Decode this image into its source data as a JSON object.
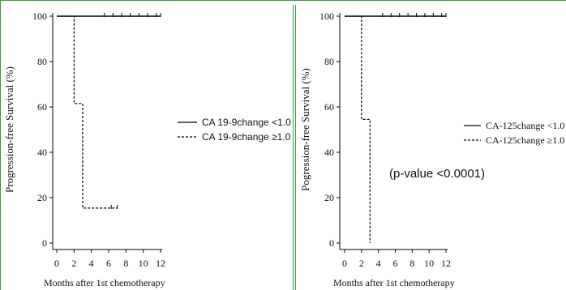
{
  "chart_data": [
    {
      "type": "line",
      "chart_style": "kaplan-meier step",
      "ylabel": "Progression-free Survival (%)",
      "xlabel": "Months after 1st chemotherapy",
      "xticks": [
        "0",
        "2",
        "4",
        "6",
        "8",
        "10",
        "12"
      ],
      "yticks": [
        "0",
        "20",
        "40",
        "60",
        "80",
        "100"
      ],
      "xlim": [
        0,
        12
      ],
      "ylim": [
        0,
        100
      ],
      "legend_position": "right",
      "series": [
        {
          "name": "CA 19-9change <1.0",
          "line_style": "solid",
          "steps": [
            [
              0,
              100
            ],
            [
              12,
              100
            ]
          ],
          "censor_marks": [
            [
              5.5,
              100
            ],
            [
              6.5,
              100
            ],
            [
              7.5,
              100
            ],
            [
              8.5,
              100
            ],
            [
              9.5,
              100
            ],
            [
              10.5,
              100
            ],
            [
              11.5,
              100
            ],
            [
              12,
              100
            ]
          ]
        },
        {
          "name": "CA 19-9change ≥1.0",
          "line_style": "dashed",
          "steps": [
            [
              0,
              100
            ],
            [
              2,
              100
            ],
            [
              2,
              61.5
            ],
            [
              3,
              61.5
            ],
            [
              3,
              15.4
            ],
            [
              7,
              15.4
            ]
          ],
          "censor_marks": [
            [
              6.3,
              15.4
            ],
            [
              7,
              15.4
            ]
          ]
        }
      ],
      "annotations": []
    },
    {
      "type": "line",
      "chart_style": "kaplan-meier step",
      "ylabel": "Pogression-free Survival (%)",
      "xlabel": "Months after 1st chemotherapy",
      "xticks": [
        "0",
        "2",
        "4",
        "6",
        "8",
        "10",
        "12"
      ],
      "yticks": [
        "0",
        "20",
        "40",
        "60",
        "80",
        "100"
      ],
      "xlim": [
        0,
        12
      ],
      "ylim": [
        0,
        100
      ],
      "legend_position": "right",
      "series": [
        {
          "name": "CA-125change <1.0",
          "line_style": "solid",
          "steps": [
            [
              0,
              100
            ],
            [
              12,
              100
            ]
          ],
          "censor_marks": [
            [
              4.5,
              100
            ],
            [
              5.5,
              100
            ],
            [
              6.5,
              100
            ],
            [
              7.5,
              100
            ],
            [
              8.5,
              100
            ],
            [
              9.5,
              100
            ],
            [
              10.5,
              100
            ],
            [
              11.5,
              100
            ],
            [
              12,
              100
            ]
          ]
        },
        {
          "name": "CA-125change ≥1.0",
          "line_style": "dashed",
          "steps": [
            [
              0,
              100
            ],
            [
              2,
              100
            ],
            [
              2,
              54.5
            ],
            [
              3,
              54.5
            ],
            [
              3,
              0
            ]
          ],
          "censor_marks": []
        }
      ],
      "annotations": [
        "(p-value <0.0001)"
      ]
    }
  ]
}
